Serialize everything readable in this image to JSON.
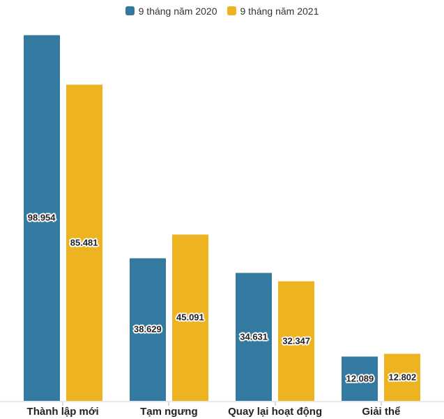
{
  "chart_data": {
    "type": "bar",
    "categories": [
      "Thành lập mới",
      "Tạm ngưng",
      "Quay lại hoạt động",
      "Giải thể"
    ],
    "series": [
      {
        "name": "9 tháng năm 2020",
        "color": "#3379A0",
        "values": [
          98954,
          38629,
          34631,
          12089
        ],
        "value_labels": [
          "98.954",
          "38.629",
          "34.631",
          "12.089"
        ]
      },
      {
        "name": "9 tháng năm 2021",
        "color": "#EEB320",
        "values": [
          85481,
          45091,
          32347,
          12802
        ],
        "value_labels": [
          "85.481",
          "45.091",
          "32.347",
          "12.802"
        ]
      }
    ],
    "ylim": [
      0,
      100000
    ],
    "grid": false,
    "legend_position": "top",
    "value_label_format": "dot-thousands-separator"
  },
  "colors": {
    "series_2020": "#3379A0",
    "series_2021": "#EEB320",
    "axis_line": "#E8E8E8",
    "axis_tick": "#D9D9D9",
    "value_label_text": "#222222",
    "category_label_text": "#222222",
    "legend_text": "#333333",
    "background": "#FFFFFF"
  }
}
